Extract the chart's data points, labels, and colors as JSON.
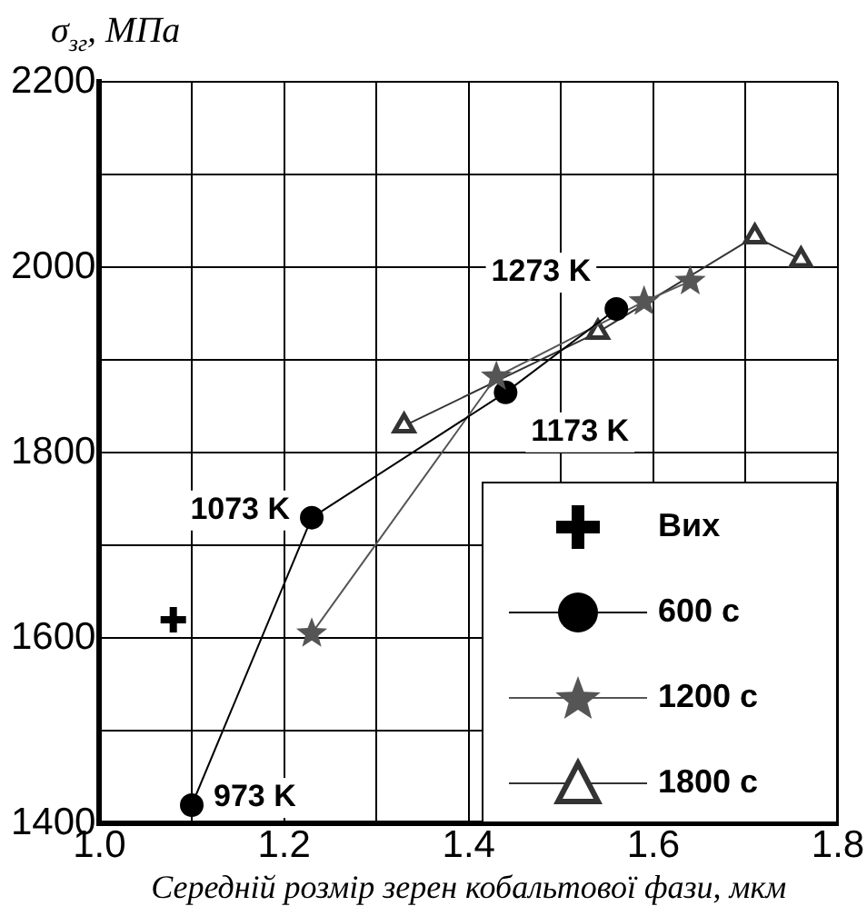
{
  "chart_data": {
    "type": "line",
    "ylabel": "σ$_{зг}$, МПа",
    "xlabel": "Середній розмір зерен кобальтової фази, мкм",
    "xlim": [
      1.0,
      1.8
    ],
    "xticks": [
      {
        "value": 1.0,
        "label": "1.0"
      },
      {
        "value": 1.1,
        "label": null
      },
      1.2,
      {
        "value": 1.3,
        "label": null
      },
      1.4,
      {
        "value": 1.5,
        "label": null
      },
      1.6,
      {
        "value": 1.7,
        "label": null
      },
      1.8
    ],
    "ylim": [
      1400,
      2200
    ],
    "yticks": [
      1400,
      {
        "value": 1500,
        "label": null
      },
      1600,
      {
        "value": 1700,
        "label": null
      },
      1800,
      {
        "value": 1900,
        "label": null
      },
      2000,
      {
        "value": 2100,
        "label": null
      },
      2200
    ],
    "grid": true,
    "legend": "bottom right",
    "series": [
      {
        "name": "Вих",
        "type": "scatter",
        "marker": "cross",
        "color": "#000000",
        "x": [
          1.08
        ],
        "values": [
          1620
        ]
      },
      {
        "name": "600 с",
        "type": "line",
        "marker": "circle",
        "color": "#000000",
        "x": [
          1.1,
          1.23,
          1.44,
          1.56
        ],
        "values": [
          1420,
          1730,
          1865,
          1955
        ]
      },
      {
        "name": "1200 с",
        "type": "line",
        "marker": "star",
        "color": "#555555",
        "x": [
          1.23,
          1.43,
          1.59,
          1.64
        ],
        "values": [
          1605,
          1882,
          1963,
          1985
        ]
      },
      {
        "name": "1800 с",
        "type": "line",
        "marker": "triangle",
        "color": "#333333",
        "x": [
          1.33,
          1.54,
          1.71,
          1.76
        ],
        "values": [
          1829,
          1930,
          2033,
          2008
        ]
      }
    ],
    "annotations": [
      {
        "text": "973 K",
        "x": 1.1,
        "y": 1420
      },
      {
        "text": "1073 K",
        "x": 1.23,
        "y": 1730
      },
      {
        "text": "1173 K",
        "x": 1.44,
        "y": 1865
      },
      {
        "text": "1273 K",
        "x": 1.56,
        "y": 1955
      }
    ]
  }
}
